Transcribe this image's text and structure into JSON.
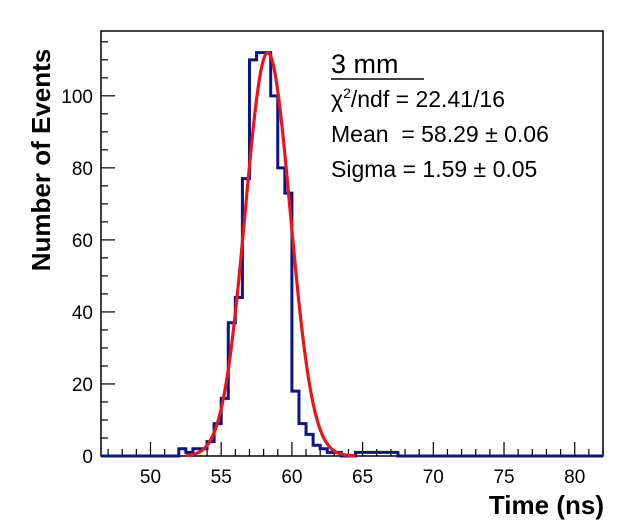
{
  "chart_data": {
    "type": "histogram",
    "xlabel": "Time (ns)",
    "ylabel": "Number of Events",
    "xlim": [
      46.5,
      82.0
    ],
    "ylim": [
      0,
      118
    ],
    "xticks": [
      50,
      55,
      60,
      65,
      70,
      75,
      80
    ],
    "yticks": [
      0,
      20,
      40,
      60,
      80,
      100
    ],
    "bin_width": 0.5,
    "bin_edges_start": 46.5,
    "bins": [
      {
        "x": 52.0,
        "count": 2
      },
      {
        "x": 52.5,
        "count": 1
      },
      {
        "x": 53.0,
        "count": 2
      },
      {
        "x": 53.5,
        "count": 2
      },
      {
        "x": 54.0,
        "count": 4
      },
      {
        "x": 54.5,
        "count": 9
      },
      {
        "x": 55.0,
        "count": 16
      },
      {
        "x": 55.5,
        "count": 37
      },
      {
        "x": 56.0,
        "count": 44
      },
      {
        "x": 56.5,
        "count": 77
      },
      {
        "x": 57.0,
        "count": 110
      },
      {
        "x": 57.5,
        "count": 112
      },
      {
        "x": 58.0,
        "count": 112
      },
      {
        "x": 58.5,
        "count": 100
      },
      {
        "x": 59.0,
        "count": 80
      },
      {
        "x": 59.5,
        "count": 73
      },
      {
        "x": 60.0,
        "count": 18
      },
      {
        "x": 60.5,
        "count": 9
      },
      {
        "x": 61.0,
        "count": 6
      },
      {
        "x": 61.5,
        "count": 3
      },
      {
        "x": 62.0,
        "count": 2
      },
      {
        "x": 62.5,
        "count": 1
      },
      {
        "x": 63.0,
        "count": 1
      },
      {
        "x": 63.5,
        "count": 0
      },
      {
        "x": 64.0,
        "count": 0
      },
      {
        "x": 64.5,
        "count": 1
      },
      {
        "x": 65.0,
        "count": 1
      },
      {
        "x": 65.5,
        "count": 1
      },
      {
        "x": 66.0,
        "count": 1
      },
      {
        "x": 66.5,
        "count": 1
      },
      {
        "x": 67.0,
        "count": 1
      },
      {
        "x": 67.5,
        "count": 0
      }
    ],
    "fit": {
      "function": "gaussian",
      "amplitude": 112,
      "mean": 58.29,
      "sigma": 1.59,
      "range": [
        52.5,
        64.5
      ]
    },
    "colors": {
      "histogram": "#0c1486",
      "fit": "#e8161b",
      "axes": "#000000"
    }
  },
  "stats": {
    "title": "3 mm",
    "chi2_ndf_label": "/ndf = 22.41/16",
    "chi_symbol": "χ",
    "chi_exponent": "2",
    "mean_label": "Mean  = 58.29 ± 0.06",
    "sigma_label": "Sigma = 1.59 ± 0.05"
  }
}
